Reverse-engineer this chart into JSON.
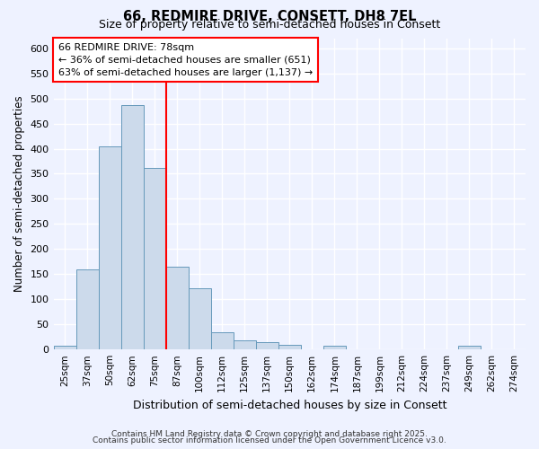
{
  "title1": "66, REDMIRE DRIVE, CONSETT, DH8 7EL",
  "title2": "Size of property relative to semi-detached houses in Consett",
  "xlabel": "Distribution of semi-detached houses by size in Consett",
  "ylabel": "Number of semi-detached properties",
  "bar_labels": [
    "25sqm",
    "37sqm",
    "50sqm",
    "62sqm",
    "75sqm",
    "87sqm",
    "100sqm",
    "112sqm",
    "125sqm",
    "137sqm",
    "150sqm",
    "162sqm",
    "174sqm",
    "187sqm",
    "199sqm",
    "212sqm",
    "224sqm",
    "237sqm",
    "249sqm",
    "262sqm",
    "274sqm"
  ],
  "bar_values": [
    7,
    160,
    405,
    487,
    362,
    164,
    122,
    35,
    18,
    14,
    9,
    0,
    8,
    0,
    0,
    0,
    0,
    0,
    8,
    0,
    0
  ],
  "bar_color": "#ccdaeb",
  "bar_edge_color": "#6699bb",
  "vline_color": "red",
  "annotation_text": "66 REDMIRE DRIVE: 78sqm\n← 36% of semi-detached houses are smaller (651)\n63% of semi-detached houses are larger (1,137) →",
  "annotation_box_color": "white",
  "annotation_box_edgecolor": "red",
  "ylim": [
    0,
    620
  ],
  "yticks": [
    0,
    50,
    100,
    150,
    200,
    250,
    300,
    350,
    400,
    450,
    500,
    550,
    600
  ],
  "bg_color": "#eef2ff",
  "grid_color": "#ffffff",
  "footer1": "Contains HM Land Registry data © Crown copyright and database right 2025.",
  "footer2": "Contains public sector information licensed under the Open Government Licence v3.0."
}
